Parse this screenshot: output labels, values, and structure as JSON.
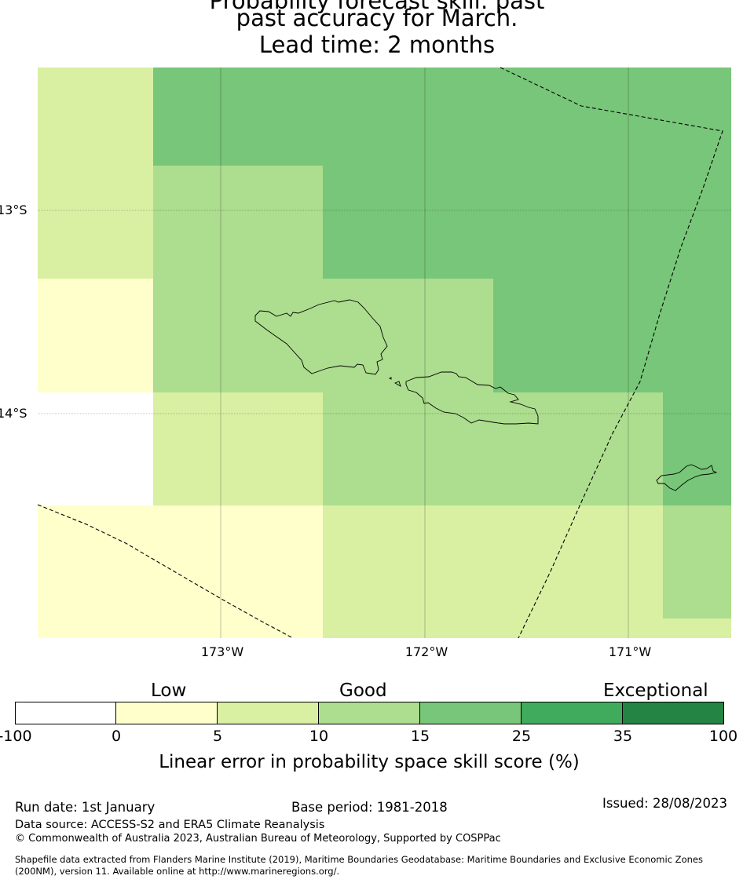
{
  "title": {
    "line1": "Probability forecast skill: past",
    "line2": "past accuracy for March.",
    "line3": "Lead time: 2 months"
  },
  "map": {
    "latitude_labels": [
      "13°S",
      "14°S"
    ],
    "longitude_labels": [
      "173°W",
      "172°W",
      "171°W"
    ],
    "skill_grid_category_index": [
      [
        2,
        4,
        4,
        4,
        4,
        4
      ],
      [
        2,
        3,
        3,
        4,
        4,
        4
      ],
      [
        2,
        3,
        4,
        4,
        4,
        4
      ],
      [
        1,
        3,
        3,
        3,
        4,
        4
      ],
      [
        1,
        3,
        3,
        3,
        4,
        4
      ],
      [
        0,
        2,
        3,
        3,
        3,
        4
      ],
      [
        1,
        1,
        2,
        2,
        2,
        3
      ],
      [
        1,
        1,
        2,
        2,
        2,
        2
      ]
    ],
    "features": [
      "Savai'i island outline",
      "Upolu island outline",
      "Tutuila island outline",
      "Maritime boundary lines"
    ]
  },
  "legend": {
    "category_labels": [
      "Low",
      "Good",
      "Exceptional"
    ],
    "ticks": [
      "-100",
      "0",
      "5",
      "10",
      "15",
      "25",
      "35",
      "100"
    ],
    "colors": [
      "#ffffff",
      "#ffffcc",
      "#d9f0a3",
      "#addd8e",
      "#78c679",
      "#41ab5d",
      "#238443"
    ],
    "title": "Linear error in probability space skill score (%)"
  },
  "footer": {
    "run_date": "Run date: 1st January",
    "base_period": "Base period: 1981-2018",
    "issued": "Issued: 28/08/2023",
    "data_source": "Data source: ACCESS-S2 and ERA5 Climate Reanalysis",
    "copyright": "© Commonwealth of Australia 2023, Australian Bureau of Meteorology, Supported by COSPPac",
    "shapefile_line1": "Shapefile data extracted from Flanders Marine Institute (2019), Maritime Boundaries Geodatabase: Maritime Boundaries and Exclusive Economic Zones",
    "shapefile_line2": "(200NM), version 11. Available online at http://www.marineregions.org/."
  }
}
